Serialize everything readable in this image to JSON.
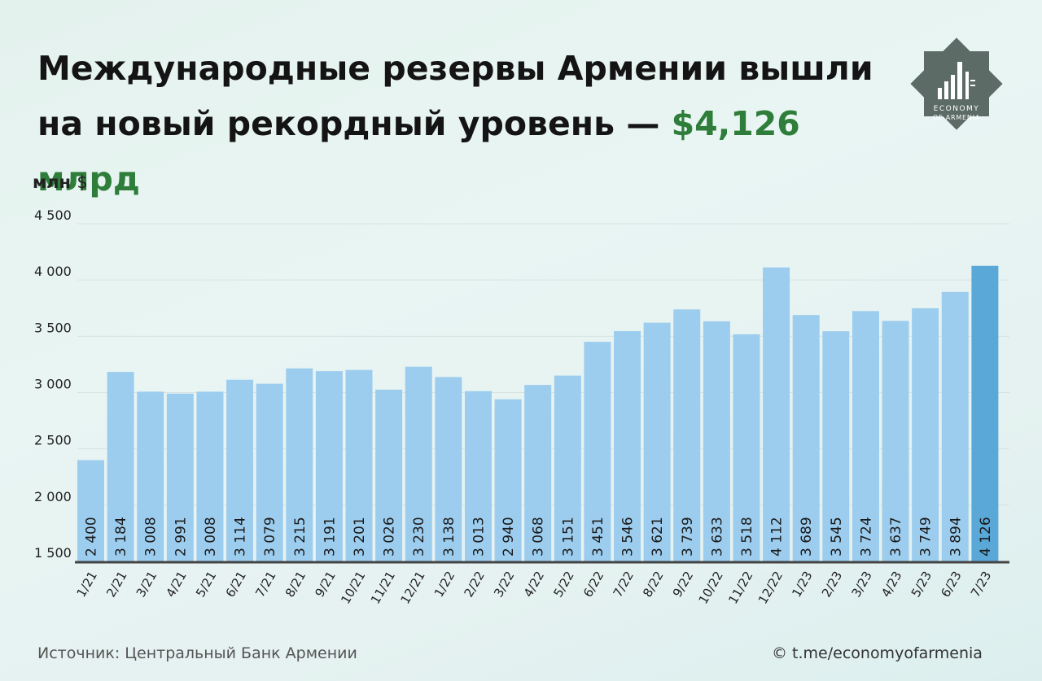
{
  "header": {
    "title_main": "Международные резервы Армении вышли на новый рекордный уровень —",
    "title_accent": "$4,126 млрд"
  },
  "logo": {
    "line1": "ECONOMY",
    "line2": "OF ARMENIA"
  },
  "footer": {
    "source": "Источник: Центральный Банк Армении",
    "credit_icon": "©",
    "credit": "t.me/economyofarmenia"
  },
  "colors": {
    "bar": "#9dcdee",
    "bar_highlight": "#5aa8d8",
    "accent": "#2e7d3a",
    "baseline": "#444444"
  },
  "chart_data": {
    "type": "bar",
    "ylabel": "млн",
    "ylabel_suffix": "$",
    "ylim": [
      1500,
      4500
    ],
    "yticks": [
      {
        "value": 1500,
        "label": "1 500"
      },
      {
        "value": 2000,
        "label": "2 000"
      },
      {
        "value": 2500,
        "label": "2 500"
      },
      {
        "value": 3000,
        "label": "3 000"
      },
      {
        "value": 3500,
        "label": "3 500"
      },
      {
        "value": 4000,
        "label": "4 000"
      },
      {
        "value": 4500,
        "label": "4 500"
      }
    ],
    "grid": true,
    "categories": [
      "1/21",
      "2/21",
      "3/21",
      "4/21",
      "5/21",
      "6/21",
      "7/21",
      "8/21",
      "9/21",
      "10/21",
      "11/21",
      "12/21",
      "1/22",
      "2/22",
      "3/22",
      "4/22",
      "5/22",
      "6/22",
      "7/22",
      "8/22",
      "9/22",
      "10/22",
      "11/22",
      "12/22",
      "1/23",
      "2/23",
      "3/23",
      "4/23",
      "5/23",
      "6/23",
      "7/23"
    ],
    "values": [
      2400,
      3184,
      3008,
      2991,
      3008,
      3114,
      3079,
      3215,
      3191,
      3201,
      3026,
      3230,
      3138,
      3013,
      2940,
      3068,
      3151,
      3451,
      3546,
      3621,
      3739,
      3633,
      3518,
      4112,
      3689,
      3545,
      3724,
      3637,
      3749,
      3894,
      4126
    ],
    "value_labels": [
      "2 400",
      "3 184",
      "3 008",
      "2 991",
      "3 008",
      "3 114",
      "3 079",
      "3 215",
      "3 191",
      "3 201",
      "3 026",
      "3 230",
      "3 138",
      "3 013",
      "2 940",
      "3 068",
      "3 151",
      "3 451",
      "3 546",
      "3 621",
      "3 739",
      "3 633",
      "3 518",
      "4 112",
      "3 689",
      "3 545",
      "3 724",
      "3 637",
      "3 749",
      "3 894",
      "4 126"
    ],
    "highlight_index": 30
  }
}
